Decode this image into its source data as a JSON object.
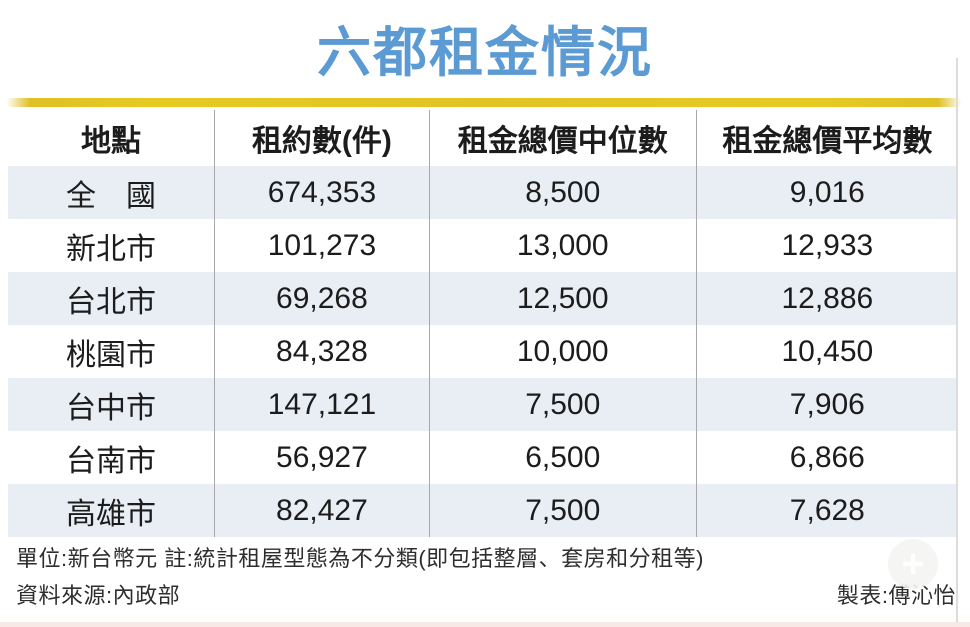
{
  "title": "六都租金情況",
  "colors": {
    "title_blue": "#5b9ad3",
    "accent_yellow": "#e2c324",
    "row_stripe": "#e9edf4",
    "separator_gray": "#a8a8a8"
  },
  "table": {
    "headers": [
      "地點",
      "租約數(件)",
      "租金總價中位數",
      "租金總價平均數"
    ],
    "rows": [
      {
        "location": "全　國",
        "contracts": "674,353",
        "median": "8,500",
        "average": "9,016"
      },
      {
        "location": "新北市",
        "contracts": "101,273",
        "median": "13,000",
        "average": "12,933"
      },
      {
        "location": "台北市",
        "contracts": "69,268",
        "median": "12,500",
        "average": "12,886"
      },
      {
        "location": "桃園市",
        "contracts": "84,328",
        "median": "10,000",
        "average": "10,450"
      },
      {
        "location": "台中市",
        "contracts": "147,121",
        "median": "7,500",
        "average": "7,906"
      },
      {
        "location": "台南市",
        "contracts": "56,927",
        "median": "6,500",
        "average": "6,866"
      },
      {
        "location": "高雄市",
        "contracts": "82,427",
        "median": "7,500",
        "average": "7,628"
      }
    ]
  },
  "notes": {
    "unit_note": "單位:新台幣元 註:統計租屋型態為不分類(即包括整層、套房和分租等)",
    "source": "資料來源:內政部",
    "credit": "製表:傅沁怡"
  },
  "watermark": {
    "plus_icon": "+"
  }
}
